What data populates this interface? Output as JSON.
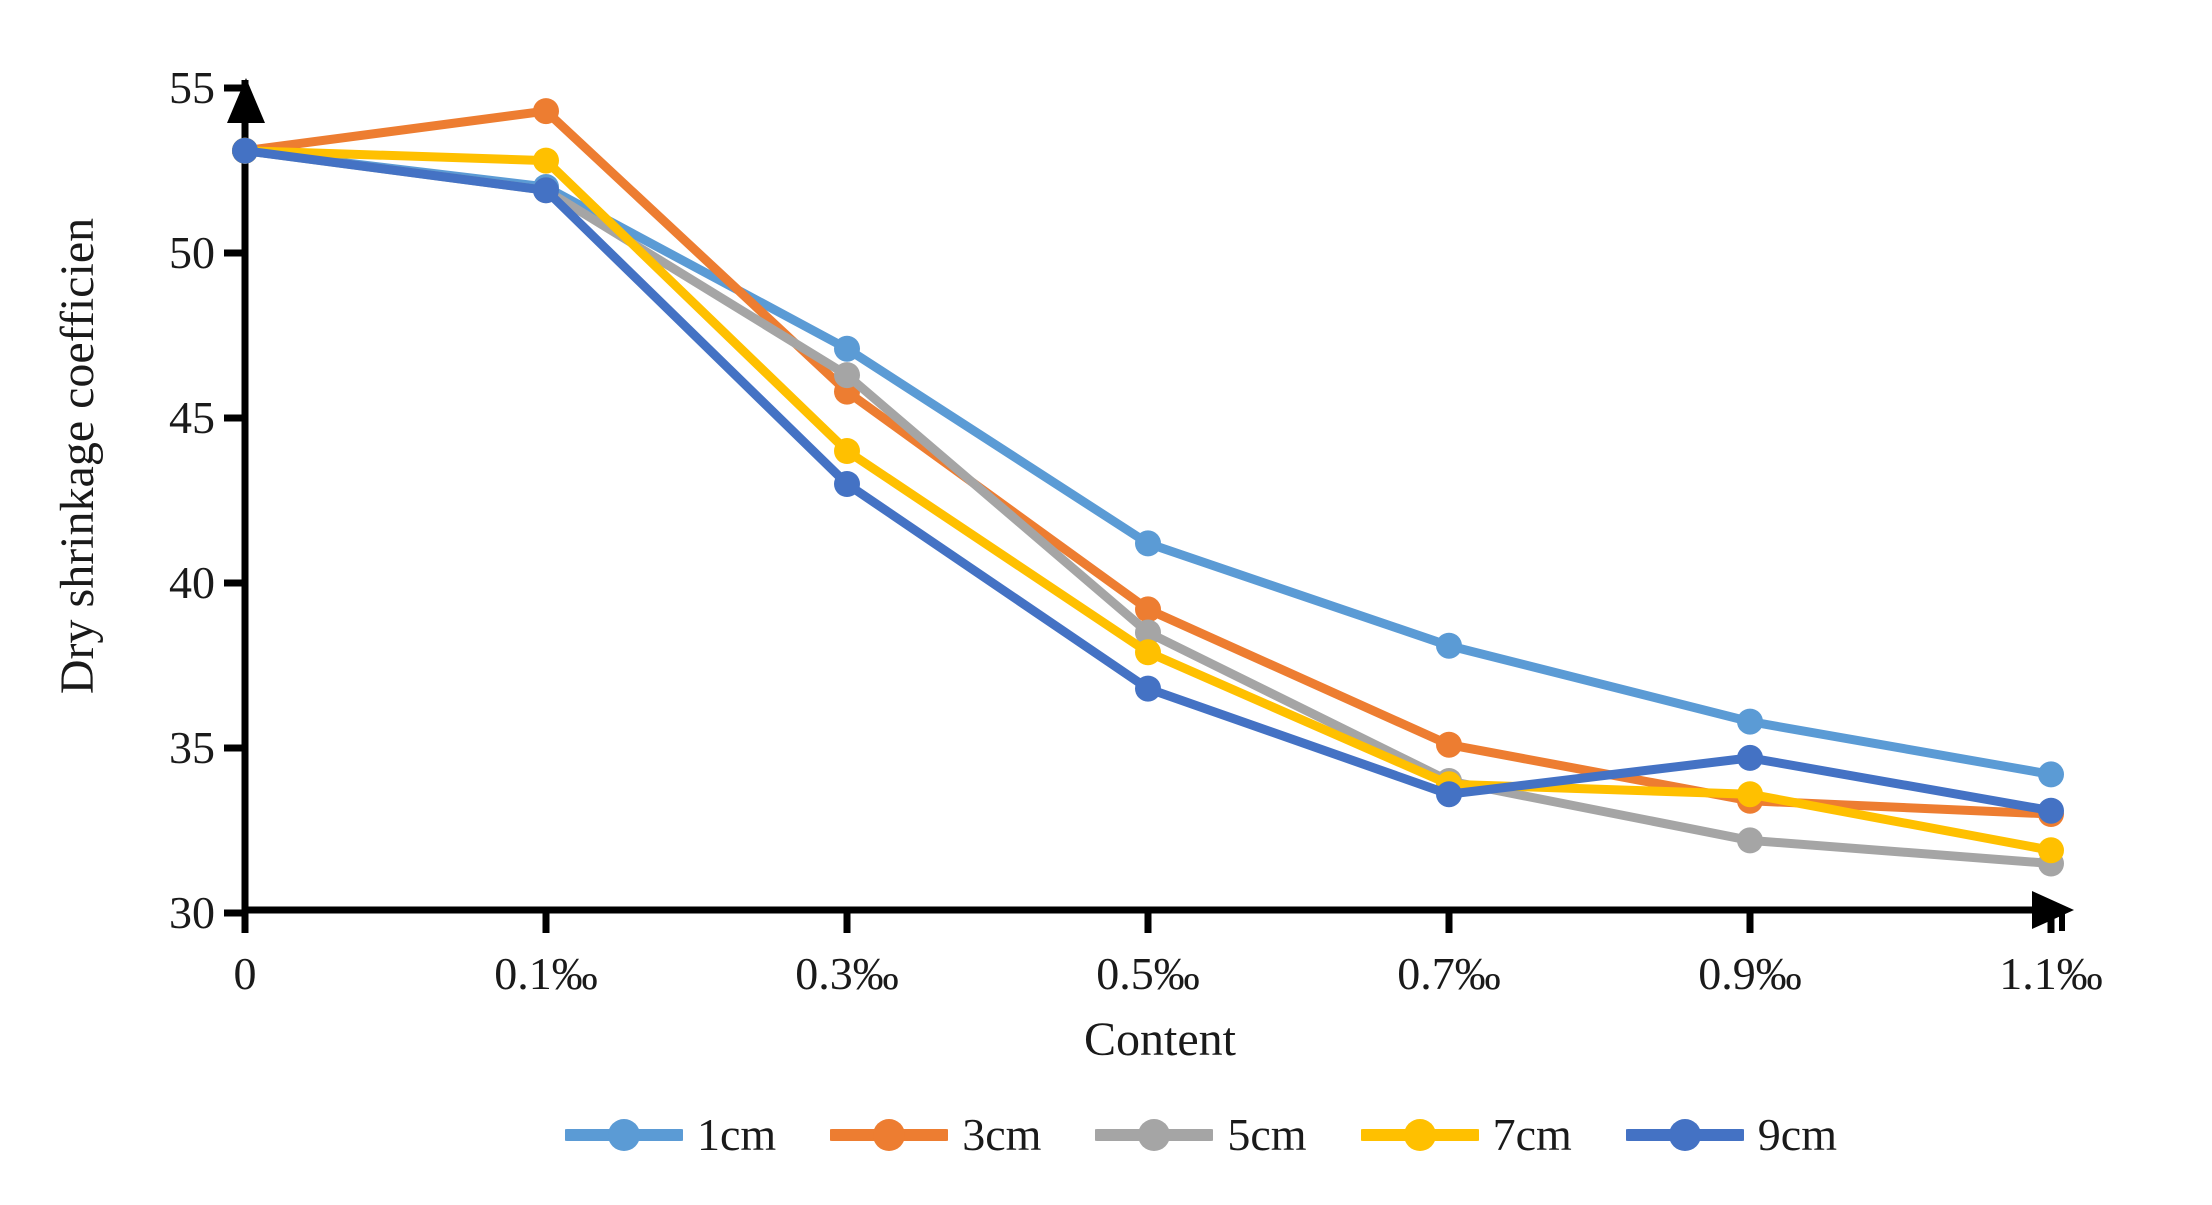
{
  "chart_data": {
    "type": "line",
    "title": "",
    "xlabel": "Content",
    "ylabel": "Dry shrinkage coefficien",
    "categories": [
      "0",
      "0.1‰",
      "0.3‰",
      "0.5‰",
      "0.7‰",
      "0.9‰",
      "1.1‰"
    ],
    "y_tick_labels": [
      "30",
      "35",
      "40",
      "45",
      "50",
      "55"
    ],
    "ylim": [
      30,
      55
    ],
    "y_step": 5,
    "grid": false,
    "legend_position": "bottom",
    "axis_color": "#000000",
    "text_color": "#1a1a1a",
    "background_color": "#ffffff",
    "axis_arrows": true,
    "series": [
      {
        "name": "1cm",
        "color": "#5B9BD5",
        "values": [
          53.1,
          52.0,
          47.1,
          41.2,
          38.1,
          35.8,
          34.2
        ]
      },
      {
        "name": "3cm",
        "color": "#ED7D31",
        "values": [
          53.1,
          54.3,
          45.8,
          39.2,
          35.1,
          33.4,
          33.0
        ]
      },
      {
        "name": "5cm",
        "color": "#A5A5A5",
        "values": [
          53.1,
          51.9,
          46.3,
          38.5,
          34.0,
          32.2,
          31.5
        ]
      },
      {
        "name": "7cm",
        "color": "#FFC000",
        "values": [
          53.1,
          52.8,
          44.0,
          37.9,
          33.9,
          33.6,
          31.9
        ]
      },
      {
        "name": "9cm",
        "color": "#4472C4",
        "values": [
          53.1,
          51.9,
          43.0,
          36.8,
          33.6,
          34.7,
          33.1
        ]
      }
    ]
  }
}
